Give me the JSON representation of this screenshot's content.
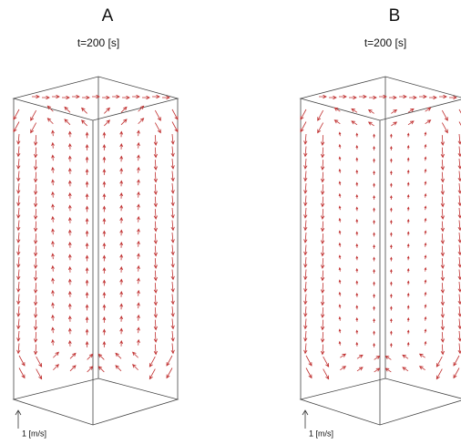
{
  "panels": [
    {
      "label": "A",
      "time": "t=200 [s]",
      "scale": "1 [m/s]"
    },
    {
      "label": "B",
      "time": "t=200 [s]",
      "scale": "1 [m/s]"
    }
  ]
}
